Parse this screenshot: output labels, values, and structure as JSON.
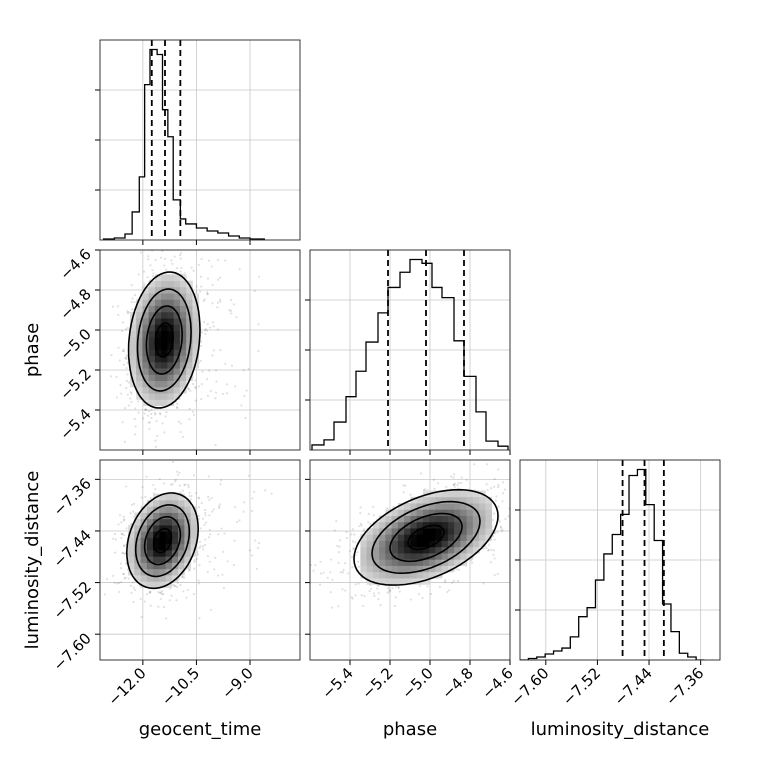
{
  "chart_data": {
    "type": "corner",
    "parameters": [
      "geocent_time",
      "phase",
      "luminosity_distance"
    ],
    "grid": true,
    "axes": {
      "geocent_time": {
        "lim": [
          -13.2,
          -7.6
        ],
        "ticks": [
          -12.0,
          -10.5,
          -9.0
        ],
        "tick_labels": [
          "−12.0",
          "−10.5",
          "−9.0"
        ]
      },
      "phase": {
        "lim": [
          -5.6,
          -4.6
        ],
        "ticks": [
          -5.4,
          -5.2,
          -5.0,
          -4.8,
          -4.6
        ],
        "tick_labels": [
          "−5.4",
          "−5.2",
          "−5.0",
          "−4.8",
          "−4.6"
        ]
      },
      "luminosity_distance": {
        "lim": [
          -7.64,
          -7.33
        ],
        "ticks": [
          -7.6,
          -7.52,
          -7.44,
          -7.36
        ],
        "tick_labels": [
          "−7.60",
          "−7.52",
          "−7.44",
          "−7.36"
        ]
      }
    },
    "marginals": {
      "geocent_time": {
        "bin_edges": [
          -13.1,
          -12.8,
          -12.5,
          -12.3,
          -12.1,
          -11.95,
          -11.8,
          -11.6,
          -11.45,
          -11.3,
          -11.15,
          -10.95,
          -10.8,
          -10.5,
          -10.2,
          -9.9,
          -9.6,
          -9.3,
          -9.0,
          -8.6
        ],
        "counts": [
          1,
          2,
          6,
          28,
          63,
          155,
          190,
          185,
          130,
          103,
          40,
          21,
          16,
          12,
          9,
          7,
          4,
          2,
          1
        ],
        "quantiles": [
          -11.75,
          -11.38,
          -10.95
        ]
      },
      "phase": {
        "bin_edges": [
          -5.59,
          -5.53,
          -5.48,
          -5.42,
          -5.37,
          -5.32,
          -5.26,
          -5.21,
          -5.15,
          -5.1,
          -5.04,
          -4.99,
          -4.94,
          -4.88,
          -4.83,
          -4.77,
          -4.72,
          -4.66,
          -4.61
        ],
        "counts": [
          4,
          8,
          22,
          42,
          62,
          85,
          108,
          128,
          140,
          150,
          147,
          128,
          120,
          86,
          58,
          30,
          7,
          3
        ],
        "quantiles": [
          -5.21,
          -5.02,
          -4.83
        ]
      },
      "luminosity_distance": {
        "bin_edges": [
          -7.64,
          -7.627,
          -7.614,
          -7.601,
          -7.588,
          -7.575,
          -7.562,
          -7.549,
          -7.536,
          -7.523,
          -7.51,
          -7.497,
          -7.484,
          -7.471,
          -7.458,
          -7.445,
          -7.432,
          -7.419,
          -7.406,
          -7.393,
          -7.38,
          -7.367,
          -7.354
        ],
        "counts": [
          0,
          2,
          4,
          8,
          12,
          16,
          31,
          58,
          70,
          107,
          142,
          168,
          195,
          247,
          255,
          208,
          160,
          75,
          38,
          9,
          4,
          0
        ],
        "quantiles": [
          -7.481,
          -7.447,
          -7.417
        ]
      }
    },
    "joint": [
      {
        "x": "geocent_time",
        "y": "phase",
        "center": [
          -11.4,
          -5.05
        ],
        "sd": [
          0.5,
          0.17
        ],
        "corr": 0.15,
        "contour_levels": [
          "0.5",
          "1.0",
          "1.5",
          "2.0"
        ]
      },
      {
        "x": "geocent_time",
        "y": "luminosity_distance",
        "center": [
          -11.45,
          -7.455
        ],
        "sd": [
          0.5,
          0.037
        ],
        "corr": 0.25,
        "contour_levels": [
          "0.5",
          "1.0",
          "1.5",
          "2.0"
        ]
      },
      {
        "x": "phase",
        "y": "luminosity_distance",
        "center": [
          -5.02,
          -7.45
        ],
        "sd": [
          0.18,
          0.037
        ],
        "corr": 0.45,
        "contour_levels": [
          "0.5",
          "1.0",
          "1.5",
          "2.0"
        ]
      }
    ]
  }
}
